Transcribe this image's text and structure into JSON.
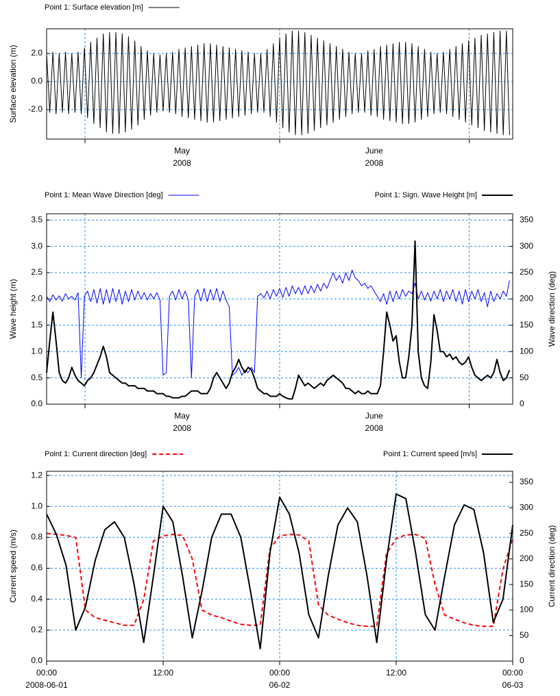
{
  "chart_data": [
    {
      "type": "line",
      "ylabel": "Surface elevation (m)",
      "xlim": [
        0,
        74
      ],
      "ylim": [
        -4.1,
        3.76
      ],
      "yticks": [
        {
          "value": -2,
          "label": "-2.0"
        },
        {
          "value": 0,
          "label": "0.0"
        },
        {
          "value": 2,
          "label": "2.0"
        }
      ],
      "xticks": [
        6.1,
        37,
        67.1
      ],
      "xtick_labels": [
        {
          "value": 21.5,
          "label": "May"
        },
        {
          "value": 52,
          "label": "June"
        }
      ],
      "xtick_sublabels": [
        "2008",
        "2008"
      ],
      "grid": true,
      "x": [
        0,
        0.5,
        1,
        1.5,
        2,
        2.5,
        3,
        3.5,
        4,
        4.5,
        5,
        5.5,
        6,
        6.5,
        7,
        7.5,
        8,
        8.5,
        9,
        9.5,
        10,
        10.5,
        11,
        11.5,
        12,
        12.5,
        13,
        13.5,
        14,
        14.5,
        15,
        15.5,
        16,
        16.5,
        17,
        17.5,
        18,
        18.5,
        19,
        19.5,
        20,
        20.5,
        21,
        21.5,
        22,
        22.5,
        23,
        23.5,
        24,
        24.5,
        25,
        25.5,
        26,
        26.5,
        27,
        27.5,
        28,
        28.5,
        29,
        29.5,
        30,
        30.5,
        31,
        31.5,
        32,
        32.5,
        33,
        33.5,
        34,
        34.5,
        35,
        35.5,
        36,
        36.5,
        37,
        37.5,
        38,
        38.5,
        39,
        39.5,
        40,
        40.5,
        41,
        41.5,
        42,
        42.5,
        43,
        43.5,
        44,
        44.5,
        45,
        45.5,
        46,
        46.5,
        47,
        47.5,
        48,
        48.5,
        49,
        49.5,
        50,
        50.5,
        51,
        51.5,
        52,
        52.5,
        53,
        53.5,
        54,
        54.5,
        55,
        55.5,
        56,
        56.5,
        57,
        57.5,
        58,
        58.5,
        59,
        59.5,
        60,
        60.5,
        61,
        61.5,
        62,
        62.5,
        63,
        63.5,
        64,
        64.5,
        65,
        65.5,
        66,
        66.5,
        67,
        67.5,
        68,
        68.5,
        69,
        69.5,
        70,
        70.5,
        71,
        71.5,
        72,
        72.5,
        73,
        73.5
      ],
      "series": [
        {
          "name": "Point 1: Surface elevation [m]",
          "color": "#000000",
          "line_width": 1,
          "values": [
            2.0,
            -2.2,
            2.1,
            -2.3,
            2.0,
            -2.2,
            2.1,
            -2.3,
            2.0,
            -2.2,
            2.1,
            -2.3,
            2.4,
            -2.6,
            2.8,
            -3.0,
            3.1,
            -3.3,
            3.4,
            -3.6,
            3.5,
            -3.7,
            3.5,
            -3.7,
            3.4,
            -3.6,
            3.2,
            -3.4,
            2.9,
            -3.1,
            2.5,
            -2.7,
            2.2,
            -2.4,
            2.0,
            -2.2,
            1.9,
            -2.1,
            2.0,
            -2.2,
            2.1,
            -2.3,
            2.3,
            -2.5,
            2.4,
            -2.6,
            2.5,
            -2.7,
            2.6,
            -2.8,
            2.7,
            -2.9,
            2.7,
            -2.9,
            2.6,
            -2.8,
            2.5,
            -2.7,
            2.4,
            -2.6,
            2.3,
            -2.5,
            2.2,
            -2.4,
            2.1,
            -2.3,
            2.0,
            -2.2,
            2.0,
            -2.2,
            2.3,
            -2.5,
            2.7,
            -2.9,
            3.1,
            -3.3,
            3.4,
            -3.6,
            3.6,
            -3.8,
            3.6,
            -3.8,
            3.5,
            -3.7,
            3.3,
            -3.5,
            3.1,
            -3.3,
            2.9,
            -3.1,
            2.7,
            -2.9,
            2.5,
            -2.7,
            2.3,
            -2.5,
            2.1,
            -2.3,
            2.0,
            -2.2,
            2.0,
            -2.2,
            2.2,
            -2.4,
            2.3,
            -2.5,
            2.5,
            -2.7,
            2.6,
            -2.8,
            2.7,
            -2.9,
            2.8,
            -3.0,
            2.8,
            -3.0,
            2.7,
            -2.9,
            2.5,
            -2.7,
            2.3,
            -2.5,
            2.1,
            -2.3,
            2.0,
            -2.2,
            2.1,
            -2.3,
            2.3,
            -2.5,
            2.5,
            -2.7,
            2.7,
            -2.9,
            2.9,
            -3.1,
            3.1,
            -3.3,
            3.3,
            -3.5,
            3.4,
            -3.6,
            3.5,
            -3.7,
            3.6,
            -3.8,
            3.6,
            -3.8
          ]
        }
      ]
    },
    {
      "type": "line",
      "ylabel": "Wave height (m)",
      "y2label": "Wave direction (deg)",
      "xlim": [
        0,
        74
      ],
      "ylim": [
        0,
        3.62
      ],
      "y2lim": [
        0,
        362
      ],
      "yticks": [
        {
          "value": 0,
          "label": "0.0"
        },
        0.5,
        {
          "value": 1,
          "label": "1.0"
        },
        1.5,
        {
          "value": 2,
          "label": "2.0"
        },
        2.5,
        {
          "value": 3,
          "label": "3.0"
        },
        3.5
      ],
      "y2ticks": [
        0,
        50,
        100,
        150,
        200,
        250,
        300,
        350
      ],
      "xticks": [
        6.1,
        37,
        67.1
      ],
      "xtick_labels": [
        {
          "value": 21.5,
          "label": "May"
        },
        {
          "value": 52,
          "label": "June"
        }
      ],
      "xtick_sublabels": [
        "2008",
        "2008"
      ],
      "grid": true,
      "x": [
        0,
        0.5,
        1,
        1.5,
        2,
        2.5,
        3,
        3.5,
        4,
        4.5,
        5,
        5.5,
        6,
        6.5,
        7,
        7.5,
        8,
        8.5,
        9,
        9.5,
        10,
        10.5,
        11,
        11.5,
        12,
        12.5,
        13,
        13.5,
        14,
        14.5,
        15,
        15.5,
        16,
        16.5,
        17,
        17.5,
        18,
        18.5,
        19,
        19.5,
        20,
        20.5,
        21,
        21.5,
        22,
        22.5,
        23,
        23.5,
        24,
        24.5,
        25,
        25.5,
        26,
        26.5,
        27,
        27.5,
        28,
        28.5,
        29,
        29.5,
        30,
        30.5,
        31,
        31.5,
        32,
        32.5,
        33,
        33.5,
        34,
        34.5,
        35,
        35.5,
        36,
        36.5,
        37,
        37.5,
        38,
        38.5,
        39,
        39.5,
        40,
        40.5,
        41,
        41.5,
        42,
        42.5,
        43,
        43.5,
        44,
        44.5,
        45,
        45.5,
        46,
        46.5,
        47,
        47.5,
        48,
        48.5,
        49,
        49.5,
        50,
        50.5,
        51,
        51.5,
        52,
        52.5,
        53,
        53.5,
        54,
        54.5,
        55,
        55.5,
        56,
        56.5,
        57,
        57.5,
        58,
        58.5,
        59,
        59.5,
        60,
        60.5,
        61,
        61.5,
        62,
        62.5,
        63,
        63.5,
        64,
        64.5,
        65,
        65.5,
        66,
        66.5,
        67,
        67.5,
        68,
        68.5,
        69,
        69.5,
        70,
        70.5,
        71,
        71.5,
        72,
        72.5,
        73,
        73.5
      ],
      "series": [
        {
          "name": "Point 1: Mean Wave Direction [deg]",
          "color": "#0000ff",
          "line_width": 1,
          "axis": "y2",
          "values": [
            205,
            195,
            208,
            198,
            206,
            196,
            210,
            200,
            205,
            198,
            212,
            50,
            205,
            215,
            195,
            218,
            192,
            220,
            190,
            218,
            192,
            220,
            195,
            218,
            190,
            215,
            195,
            218,
            198,
            215,
            200,
            212,
            198,
            210,
            200,
            212,
            198,
            55,
            60,
            205,
            215,
            198,
            218,
            200,
            215,
            198,
            50,
            205,
            218,
            196,
            220,
            195,
            218,
            198,
            220,
            195,
            215,
            198,
            185,
            55,
            60,
            70,
            55,
            65,
            60,
            70,
            60,
            205,
            210,
            202,
            215,
            200,
            218,
            205,
            220,
            203,
            222,
            205,
            225,
            210,
            222,
            208,
            225,
            210,
            225,
            212,
            228,
            215,
            230,
            220,
            235,
            250,
            235,
            245,
            230,
            250,
            235,
            255,
            240,
            235,
            225,
            230,
            220,
            225,
            215,
            205,
            195,
            210,
            190,
            215,
            195,
            215,
            200,
            218,
            205,
            215,
            210,
            230,
            200,
            215,
            198,
            212,
            196,
            215,
            200,
            218,
            195,
            215,
            200,
            218,
            195,
            215,
            190,
            218,
            195,
            215,
            200,
            218,
            195,
            212,
            185,
            215,
            195,
            210,
            200,
            215,
            205,
            235
          ]
        },
        {
          "name": "Point 1: Sign. Wave Height [m]",
          "color": "#000000",
          "line_width": 2,
          "values": [
            0.6,
            1.2,
            1.75,
            1.2,
            0.6,
            0.45,
            0.4,
            0.5,
            0.7,
            0.55,
            0.45,
            0.4,
            0.35,
            0.45,
            0.5,
            0.6,
            0.75,
            0.9,
            1.1,
            0.9,
            0.6,
            0.55,
            0.5,
            0.45,
            0.4,
            0.4,
            0.35,
            0.35,
            0.35,
            0.3,
            0.3,
            0.3,
            0.25,
            0.25,
            0.25,
            0.2,
            0.2,
            0.2,
            0.15,
            0.15,
            0.12,
            0.12,
            0.12,
            0.15,
            0.15,
            0.2,
            0.25,
            0.25,
            0.25,
            0.2,
            0.2,
            0.2,
            0.3,
            0.5,
            0.6,
            0.5,
            0.4,
            0.3,
            0.4,
            0.6,
            0.7,
            0.85,
            0.7,
            0.6,
            0.7,
            0.65,
            0.5,
            0.3,
            0.25,
            0.2,
            0.2,
            0.15,
            0.15,
            0.15,
            0.2,
            0.15,
            0.12,
            0.1,
            0.1,
            0.3,
            0.55,
            0.45,
            0.35,
            0.4,
            0.35,
            0.3,
            0.35,
            0.4,
            0.35,
            0.45,
            0.5,
            0.55,
            0.5,
            0.45,
            0.4,
            0.3,
            0.3,
            0.25,
            0.2,
            0.25,
            0.2,
            0.2,
            0.25,
            0.2,
            0.2,
            0.2,
            0.35,
            1.0,
            1.75,
            1.5,
            1.2,
            1.3,
            0.8,
            0.5,
            0.5,
            0.9,
            1.5,
            3.1,
            1.0,
            0.5,
            0.35,
            0.3,
            0.8,
            1.7,
            1.4,
            1.0,
            1.0,
            0.9,
            0.95,
            0.85,
            0.9,
            0.8,
            0.75,
            0.8,
            0.9,
            0.7,
            0.55,
            0.5,
            0.45,
            0.5,
            0.55,
            0.5,
            0.6,
            0.85,
            0.6,
            0.45,
            0.5,
            0.65
          ]
        }
      ]
    },
    {
      "type": "line",
      "ylabel": "Current speed (m/s)",
      "y2label": "Current direction (deg)",
      "xlim": [
        0,
        48
      ],
      "ylim": [
        0,
        1.227
      ],
      "y2lim": [
        0,
        371.5
      ],
      "yticks": [
        {
          "value": 0,
          "label": "0.0"
        },
        0.2,
        0.4,
        0.6,
        0.8,
        {
          "value": 1,
          "label": "1.0"
        },
        1.2
      ],
      "y2ticks": [
        0,
        50,
        100,
        150,
        200,
        250,
        300,
        350
      ],
      "xticks": [
        {
          "value": 0,
          "label": "00:00"
        },
        {
          "value": 12,
          "label": "12:00"
        },
        {
          "value": 24,
          "label": "00:00"
        },
        {
          "value": 36,
          "label": "12:00"
        },
        {
          "value": 48,
          "label": "00:00"
        }
      ],
      "xtick_sublabels": [
        "2008-06-01",
        null,
        "06-02",
        null,
        "06-03"
      ],
      "grid": true,
      "x": [
        0,
        1,
        2,
        3,
        4,
        5,
        6,
        7,
        8,
        9,
        10,
        11,
        12,
        13,
        14,
        15,
        16,
        17,
        18,
        19,
        20,
        21,
        22,
        23,
        24,
        25,
        26,
        27,
        28,
        29,
        30,
        31,
        32,
        33,
        34,
        35,
        36,
        37,
        38,
        39,
        40,
        41,
        42,
        43,
        44,
        45,
        46,
        47,
        48
      ],
      "series": [
        {
          "name": "Point 1: Current direction [deg]",
          "color": "#ff0000",
          "line_width": 2,
          "dashed": true,
          "axis": "y2",
          "values": [
            250,
            248,
            246,
            242,
            100,
            85,
            80,
            75,
            70,
            70,
            120,
            235,
            245,
            248,
            246,
            200,
            100,
            90,
            85,
            78,
            72,
            70,
            70,
            220,
            245,
            248,
            247,
            235,
            110,
            90,
            82,
            75,
            70,
            68,
            68,
            210,
            240,
            247,
            248,
            240,
            150,
            90,
            82,
            75,
            70,
            68,
            68,
            180,
            240
          ]
        },
        {
          "name": "Point 1: Current speed [m/s]",
          "color": "#000000",
          "line_width": 2,
          "values": [
            0.95,
            0.82,
            0.62,
            0.2,
            0.35,
            0.65,
            0.85,
            0.9,
            0.8,
            0.5,
            0.12,
            0.55,
            1.0,
            0.9,
            0.55,
            0.15,
            0.45,
            0.8,
            0.95,
            0.95,
            0.8,
            0.45,
            0.08,
            0.7,
            1.06,
            0.95,
            0.7,
            0.3,
            0.15,
            0.55,
            0.88,
            0.99,
            0.9,
            0.55,
            0.12,
            0.65,
            1.08,
            1.05,
            0.7,
            0.3,
            0.2,
            0.55,
            0.88,
            1.01,
            0.98,
            0.7,
            0.25,
            0.4,
            0.88
          ]
        }
      ]
    }
  ]
}
